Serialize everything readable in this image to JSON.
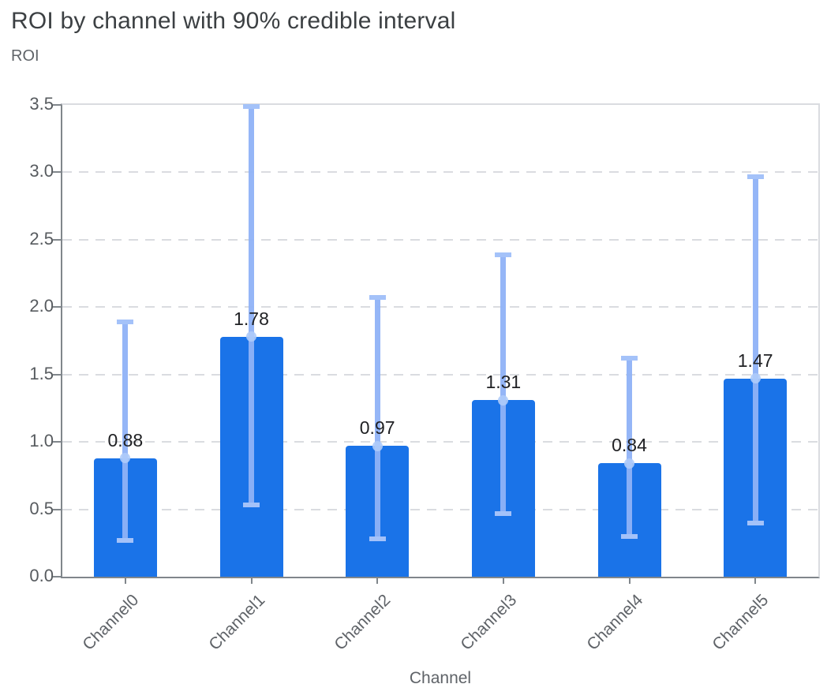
{
  "chart_data": {
    "type": "bar",
    "title": "ROI by channel with 90% credible interval",
    "ylabel": "ROI",
    "xlabel": "Channel",
    "categories": [
      "Channel0",
      "Channel1",
      "Channel2",
      "Channel3",
      "Channel4",
      "Channel5"
    ],
    "values": [
      0.88,
      1.78,
      0.97,
      1.31,
      0.84,
      1.47
    ],
    "value_labels": [
      "0.88",
      "1.78",
      "0.97",
      "1.31",
      "0.84",
      "1.47"
    ],
    "ci_low": [
      0.27,
      0.53,
      0.28,
      0.47,
      0.3,
      0.4
    ],
    "ci_high": [
      1.89,
      3.49,
      2.07,
      2.39,
      1.62,
      2.97
    ],
    "ci_level": "90%",
    "ylim": [
      0,
      3.5
    ],
    "ytick_labels": [
      "0.0",
      "0.5",
      "1.0",
      "1.5",
      "2.0",
      "2.5",
      "3.0",
      "3.5"
    ],
    "ytick_values": [
      0,
      0.5,
      1.0,
      1.5,
      2.0,
      2.5,
      3.0,
      3.5
    ],
    "grid": "dashed-horizontal",
    "legend": "none",
    "colors": {
      "bar": "#1a73e8",
      "error_line": "#8fb2f7",
      "error_cap": "#a4c2f9",
      "mean_marker": "#aecbfa",
      "grid": "#dadce0",
      "axis": "#80868b",
      "plot_border": "#dadce0",
      "title_text": "#3c4043",
      "axis_text": "#5f6368",
      "value_text": "#202124"
    }
  }
}
